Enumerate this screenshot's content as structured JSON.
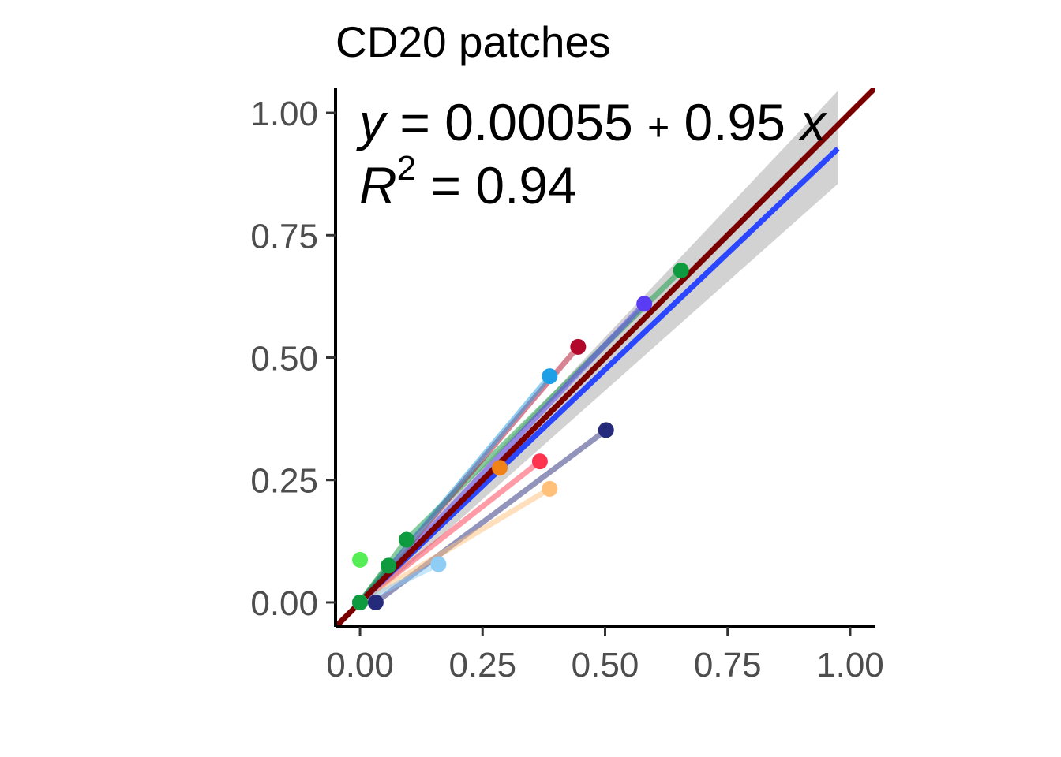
{
  "chart_data": {
    "type": "scatter",
    "title": "CD20 patches",
    "xlabel": "",
    "ylabel": "",
    "xlim": [
      -0.05,
      1.05
    ],
    "ylim": [
      -0.05,
      1.05
    ],
    "xticks": [
      "0.00",
      "0.25",
      "0.50",
      "0.75",
      "1.00"
    ],
    "yticks": [
      "0.00",
      "0.25",
      "0.50",
      "0.75",
      "1.00"
    ],
    "grid": false,
    "annotation": {
      "y_var": "y",
      "equation_rhs": "= 0.00055",
      "plus": "+",
      "slope_term": "0.95",
      "x_var": "x",
      "r_var": "R",
      "r_exp": "2",
      "r2_rhs": "= 0.94"
    },
    "series": [
      {
        "color": "#0e9a3e",
        "points": [
          [
            0,
            0
          ],
          [
            0.095,
            0.128
          ],
          [
            0.655,
            0.678
          ]
        ]
      },
      {
        "color": "#5b3cf5",
        "points": [
          [
            0,
            0
          ],
          [
            0.58,
            0.61
          ]
        ]
      },
      {
        "color": "#b2082a",
        "points": [
          [
            0,
            0
          ],
          [
            0.445,
            0.522
          ]
        ]
      },
      {
        "color": "#1e9fe6",
        "points": [
          [
            0,
            0
          ],
          [
            0.387,
            0.462
          ]
        ]
      },
      {
        "color": "#f08216",
        "points": [
          [
            0,
            0
          ],
          [
            0.285,
            0.275
          ]
        ]
      },
      {
        "color": "#262a7a",
        "points": [
          [
            0.032,
            0
          ],
          [
            0.502,
            0.352
          ]
        ]
      },
      {
        "color": "#ff3550",
        "points": [
          [
            0,
            0
          ],
          [
            0.367,
            0.288
          ]
        ]
      },
      {
        "color": "#ffc07a",
        "points": [
          [
            0,
            0
          ],
          [
            0.387,
            0.232
          ]
        ]
      },
      {
        "color": "#8ecdf6",
        "points": [
          [
            0,
            0
          ],
          [
            0.16,
            0.078
          ]
        ]
      },
      {
        "color": "#0e9a3e",
        "points": [
          [
            0,
            0
          ],
          [
            0.058,
            0.075
          ]
        ]
      },
      {
        "color": "#55ef55",
        "points": [
          [
            0,
            0.087
          ]
        ]
      }
    ],
    "fit_line": {
      "color": "#2a46ff",
      "intercept": 0.00055,
      "slope": 0.95,
      "x_range": [
        0,
        0.975
      ],
      "ci_upper_end": 1.045,
      "ci_lower_end": 0.855
    },
    "identity_line": {
      "color": "#7a0000",
      "intercept": 0,
      "slope": 1
    }
  }
}
